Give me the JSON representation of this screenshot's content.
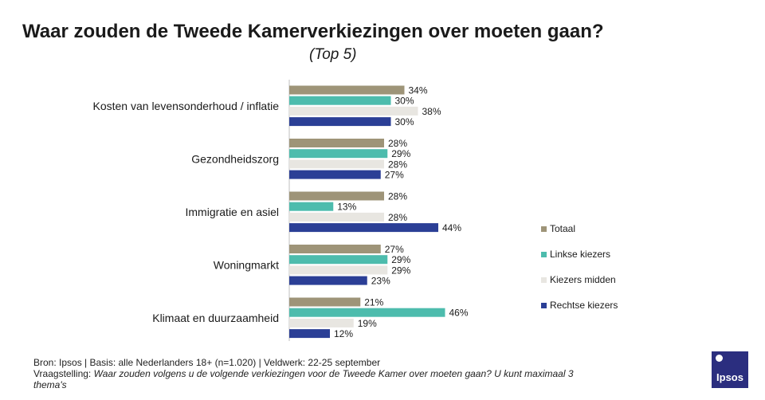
{
  "title": "Waar zouden de Tweede Kamerverkiezingen over moeten gaan?",
  "subtitle": "(Top 5)",
  "footer": {
    "source": "Bron: Ipsos | Basis: alle Nederlanders  18+ (n=1.020) | Veldwerk: 22-25  september",
    "question_prefix": "Vraagstelling: ",
    "question": "Waar zouden volgens  u de volgende verkiezingen voor de Tweede  Kamer over moeten gaan?  U kunt maximaal  3 thema's"
  },
  "logo": {
    "text": "Ipsos"
  },
  "chart_data": {
    "type": "bar",
    "orientation": "horizontal",
    "value_suffix": "%",
    "categories": [
      "Kosten van levensonderhoud  / inflatie",
      "Gezondheidszorg",
      "Immigratie en asiel",
      "Woningmarkt",
      "Klimaat en duurzaamheid"
    ],
    "series": [
      {
        "name": "Totaal",
        "color": "#9e9478",
        "values": [
          34,
          28,
          28,
          27,
          21
        ]
      },
      {
        "name": "Linkse kiezers",
        "color": "#4dbcad",
        "values": [
          30,
          29,
          13,
          29,
          46
        ]
      },
      {
        "name": "Kiezers midden",
        "color": "#e8e6e1",
        "values": [
          38,
          28,
          28,
          29,
          19
        ]
      },
      {
        "name": "Rechtse kiezers",
        "color": "#2b3f96",
        "values": [
          30,
          27,
          44,
          23,
          12
        ]
      }
    ],
    "xlim": [
      0,
      50
    ],
    "legend_position": "right",
    "grid": false
  }
}
